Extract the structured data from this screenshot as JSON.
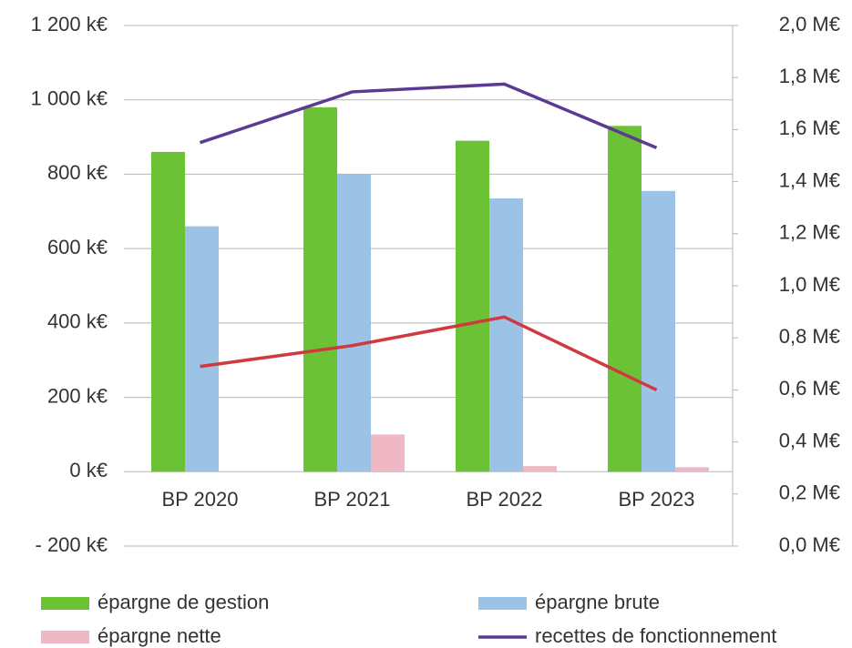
{
  "chart_data": {
    "type": "bar",
    "categories": [
      "BP 2020",
      "BP 2021",
      "BP 2022",
      "BP 2023"
    ],
    "ylim": [
      -200,
      1200
    ],
    "yticks": [
      {
        "value": -200,
        "label": "-  200 k€"
      },
      {
        "value": 0,
        "label": "0 k€"
      },
      {
        "value": 200,
        "label": "200 k€"
      },
      {
        "value": 400,
        "label": "400 k€"
      },
      {
        "value": 600,
        "label": "600 k€"
      },
      {
        "value": 800,
        "label": "800 k€"
      },
      {
        "value": 1000,
        "label": "1 000 k€"
      },
      {
        "value": 1200,
        "label": "1 200 k€"
      }
    ],
    "y2lim": [
      0,
      2
    ],
    "y2ticks": [
      {
        "value": 0,
        "label": "0,0 M€"
      },
      {
        "value": 0.2,
        "label": "0,2 M€"
      },
      {
        "value": 0.4,
        "label": "0,4 M€"
      },
      {
        "value": 0.6,
        "label": "0,6 M€"
      },
      {
        "value": 0.8,
        "label": "0,8 M€"
      },
      {
        "value": 1,
        "label": "1,0 M€"
      },
      {
        "value": 1.2,
        "label": "1,2 M€"
      },
      {
        "value": 1.4,
        "label": "1,4 M€"
      },
      {
        "value": 1.6,
        "label": "1,6 M€"
      },
      {
        "value": 1.8,
        "label": "1,8 M€"
      },
      {
        "value": 2,
        "label": "2,0 M€"
      }
    ],
    "grid": true,
    "legend": "bottom",
    "series": [
      {
        "name": "épargne de gestion",
        "type": "bar",
        "color": "#6cc235",
        "values": [
          860,
          980,
          890,
          930
        ]
      },
      {
        "name": "épargne brute",
        "type": "bar",
        "color": "#9cc3e5",
        "values": [
          660,
          800,
          735,
          755
        ]
      },
      {
        "name": "épargne nette",
        "type": "bar",
        "color": "#f0b8c4",
        "values": [
          0,
          100,
          15,
          12
        ]
      },
      {
        "name": "recettes de fonctionnement",
        "type": "line",
        "axis": "y2",
        "color": "#5b3a93",
        "values": [
          1.55,
          1.745,
          1.775,
          1.53
        ]
      },
      {
        "type": "line",
        "axis": "y2",
        "color": "#d0393f",
        "values": [
          0.69,
          0.77,
          0.88,
          0.6
        ]
      }
    ]
  }
}
